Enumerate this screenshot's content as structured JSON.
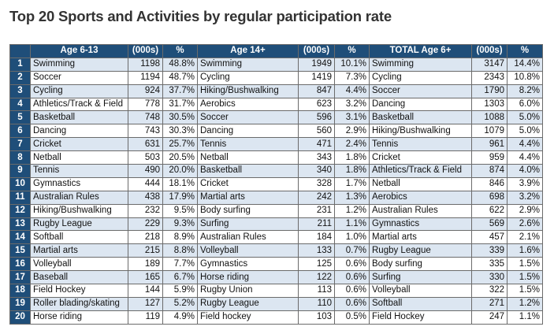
{
  "title": "Top 20 Sports and Activities by regular participation rate",
  "table": {
    "header": [
      "Age 6-13",
      "(000s)",
      "%",
      "Age 14+",
      "(000s)",
      "%",
      "TOTAL Age 6+",
      "(000s)",
      "%"
    ],
    "rows": [
      [
        1,
        "Swimming",
        1198,
        "48.8%",
        "Swimming",
        1949,
        "10.1%",
        "Swimming",
        3147,
        "14.4%"
      ],
      [
        2,
        "Soccer",
        1194,
        "48.7%",
        "Cycling",
        1419,
        "7.3%",
        "Cycling",
        2343,
        "10.8%"
      ],
      [
        3,
        "Cycling",
        924,
        "37.7%",
        "Hiking/Bushwalking",
        847,
        "4.4%",
        "Soccer",
        1790,
        "8.2%"
      ],
      [
        4,
        "Athletics/Track & Field",
        778,
        "31.7%",
        "Aerobics",
        623,
        "3.2%",
        "Dancing",
        1303,
        "6.0%"
      ],
      [
        5,
        "Basketball",
        748,
        "30.5%",
        "Soccer",
        596,
        "3.1%",
        "Basketball",
        1088,
        "5.0%"
      ],
      [
        6,
        "Dancing",
        743,
        "30.3%",
        "Dancing",
        560,
        "2.9%",
        "Hiking/Bushwalking",
        1079,
        "5.0%"
      ],
      [
        7,
        "Cricket",
        631,
        "25.7%",
        "Tennis",
        471,
        "2.4%",
        "Tennis",
        961,
        "4.4%"
      ],
      [
        8,
        "Netball",
        503,
        "20.5%",
        "Netball",
        343,
        "1.8%",
        "Cricket",
        959,
        "4.4%"
      ],
      [
        9,
        "Tennis",
        490,
        "20.0%",
        "Basketball",
        340,
        "1.8%",
        "Athletics/Track & Field",
        874,
        "4.0%"
      ],
      [
        10,
        "Gymnastics",
        444,
        "18.1%",
        "Cricket",
        328,
        "1.7%",
        "Netball",
        846,
        "3.9%"
      ],
      [
        11,
        "Australian Rules",
        438,
        "17.9%",
        "Martial arts",
        242,
        "1.3%",
        "Aerobics",
        698,
        "3.2%"
      ],
      [
        12,
        "Hiking/Bushwalking",
        232,
        "9.5%",
        "Body surfing",
        231,
        "1.2%",
        "Australian Rules",
        622,
        "2.9%"
      ],
      [
        13,
        "Rugby League",
        229,
        "9.3%",
        "Surfing",
        211,
        "1.1%",
        "Gymnastics",
        569,
        "2.6%"
      ],
      [
        14,
        "Softball",
        218,
        "8.9%",
        "Australian Rules",
        184,
        "1.0%",
        "Martial arts",
        457,
        "2.1%"
      ],
      [
        15,
        "Martial arts",
        215,
        "8.8%",
        "Volleyball",
        133,
        "0.7%",
        "Rugby League",
        339,
        "1.6%"
      ],
      [
        16,
        "Volleyball",
        189,
        "7.7%",
        "Gymnastics",
        125,
        "0.6%",
        "Body surfing",
        335,
        "1.5%"
      ],
      [
        17,
        "Baseball",
        165,
        "6.7%",
        "Horse riding",
        122,
        "0.6%",
        "Surfing",
        330,
        "1.5%"
      ],
      [
        18,
        "Field Hockey",
        144,
        "5.9%",
        "Rugby Union",
        113,
        "0.6%",
        "Volleyball",
        322,
        "1.5%"
      ],
      [
        19,
        "Roller blading/skating",
        127,
        "5.2%",
        "Rugby League",
        110,
        "0.6%",
        "Softball",
        271,
        "1.2%"
      ],
      [
        20,
        "Horse riding",
        119,
        "4.9%",
        "Field hockey",
        103,
        "0.5%",
        "Field Hockey",
        247,
        "1.1%"
      ]
    ]
  }
}
